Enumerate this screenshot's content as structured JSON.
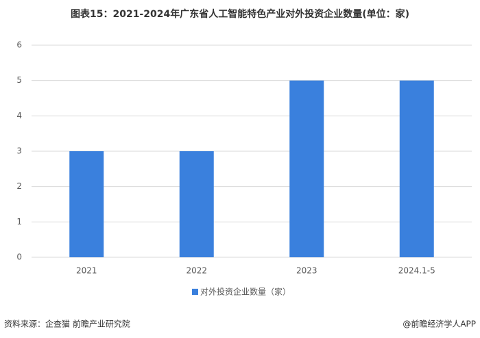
{
  "chart_data": {
    "type": "bar",
    "title": "图表15：2021-2024年广东省人工智能特色产业对外投资企业数量(单位：家)",
    "categories": [
      "2021",
      "2022",
      "2023",
      "2024.1-5"
    ],
    "series": [
      {
        "name": "对外投资企业数量（家）",
        "color": "#3a80dd",
        "values": [
          3,
          3,
          5,
          5
        ]
      }
    ],
    "ylim": [
      0,
      6
    ],
    "yticks": [
      0,
      1,
      2,
      3,
      4,
      5,
      6
    ],
    "grid": true,
    "source": "资料来源：企查猫 前瞻产业研究院",
    "credit": "@前瞻经济学人APP"
  }
}
